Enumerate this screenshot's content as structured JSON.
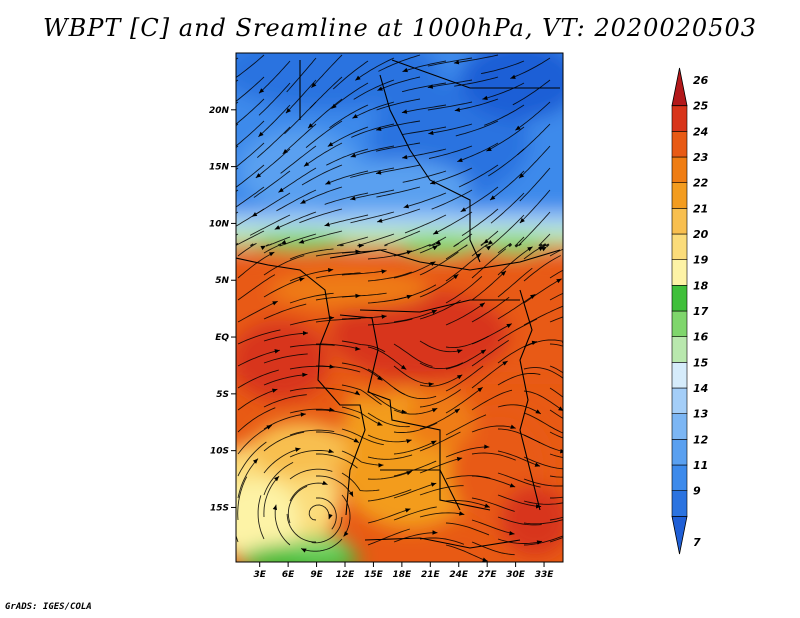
{
  "title": "WBPT [C] and Sreamline at 1000hPa, VT: 2020020503",
  "credit": "GrADS: IGES/COLA",
  "lat_ticks": [
    {
      "label": "20N",
      "lat": 20
    },
    {
      "label": "15N",
      "lat": 15
    },
    {
      "label": "10N",
      "lat": 10
    },
    {
      "label": "5N",
      "lat": 5
    },
    {
      "label": "EQ",
      "lat": 0
    },
    {
      "label": "5S",
      "lat": -5
    },
    {
      "label": "10S",
      "lat": -10
    },
    {
      "label": "15S",
      "lat": -15
    }
  ],
  "lon_ticks": [
    {
      "label": "3E",
      "lon": 3
    },
    {
      "label": "6E",
      "lon": 6
    },
    {
      "label": "9E",
      "lon": 9
    },
    {
      "label": "12E",
      "lon": 12
    },
    {
      "label": "15E",
      "lon": 15
    },
    {
      "label": "18E",
      "lon": 18
    },
    {
      "label": "21E",
      "lon": 21
    },
    {
      "label": "24E",
      "lon": 24
    },
    {
      "label": "27E",
      "lon": 27
    },
    {
      "label": "30E",
      "lon": 30
    },
    {
      "label": "33E",
      "lon": 33
    }
  ],
  "colorbar": [
    {
      "label": "7",
      "color": "#1f5fd6"
    },
    {
      "label": "9",
      "color": "#2b73e0"
    },
    {
      "label": "11",
      "color": "#3d8aeb"
    },
    {
      "label": "12",
      "color": "#5aa0f0"
    },
    {
      "label": "13",
      "color": "#7cb6f4"
    },
    {
      "label": "14",
      "color": "#a4cef8"
    },
    {
      "label": "15",
      "color": "#d6ecfb"
    },
    {
      "label": "16",
      "color": "#b9e8ae"
    },
    {
      "label": "17",
      "color": "#7fd66c"
    },
    {
      "label": "18",
      "color": "#3fbf3a"
    },
    {
      "label": "19",
      "color": "#fdf3a6"
    },
    {
      "label": "20",
      "color": "#fbdc7a"
    },
    {
      "label": "21",
      "color": "#f8bf4f"
    },
    {
      "label": "22",
      "color": "#f39c1f"
    },
    {
      "label": "23",
      "color": "#ef7d13"
    },
    {
      "label": "24",
      "color": "#e85a14"
    },
    {
      "label": "25",
      "color": "#d8341a"
    },
    {
      "label": "26",
      "color": "#b3181a"
    }
  ]
}
